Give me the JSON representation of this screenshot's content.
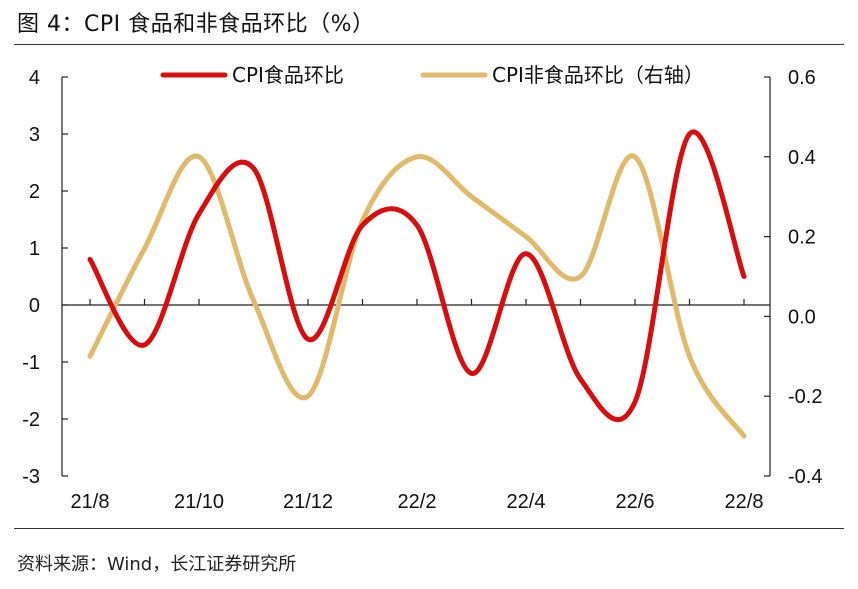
{
  "figure": {
    "title": "图 4：CPI 食品和非食品环比（%）",
    "source": "资料来源：Wind，长江证券研究所"
  },
  "chart_data": {
    "type": "line",
    "x_tick_labels": [
      "21/8",
      "21/10",
      "21/12",
      "22/2",
      "22/4",
      "22/6",
      "22/8"
    ],
    "x": [
      "21/8",
      "21/9",
      "21/10",
      "21/11",
      "21/12",
      "22/1",
      "22/2",
      "22/3",
      "22/4",
      "22/5",
      "22/6",
      "22/7",
      "22/8"
    ],
    "y_left": {
      "min": -3,
      "max": 4,
      "ticks": [
        4,
        3,
        2,
        1,
        0,
        -1,
        -2,
        -3
      ]
    },
    "y_right": {
      "min": -0.4,
      "max": 0.6,
      "ticks": [
        "0.6",
        "0.4",
        "0.2",
        "0.0",
        "-0.2",
        "-0.4"
      ]
    },
    "series": [
      {
        "name": "CPI食品环比",
        "axis": "left",
        "color": "#d80e0e",
        "values": [
          0.8,
          -0.7,
          1.6,
          2.4,
          -0.6,
          1.4,
          1.4,
          -1.2,
          0.9,
          -1.3,
          -1.7,
          3.0,
          0.5
        ]
      },
      {
        "name": "CPI非食品环比（右轴）",
        "axis": "right",
        "color": "#e0b96a",
        "values": [
          -0.1,
          0.17,
          0.4,
          0.04,
          -0.2,
          0.24,
          0.4,
          0.3,
          0.2,
          0.1,
          0.4,
          -0.1,
          -0.3
        ]
      }
    ],
    "legend_position": "top",
    "grid": false
  }
}
